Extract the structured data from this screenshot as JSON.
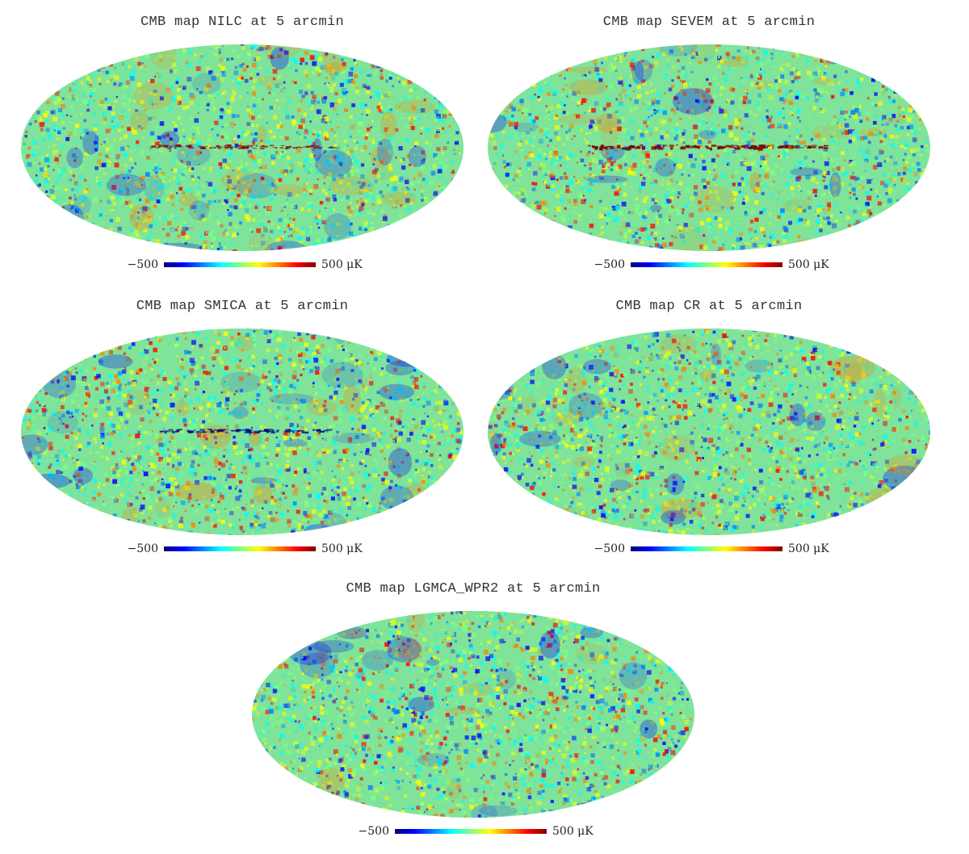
{
  "colors": {
    "cold": "#0000ff",
    "warm": "#ff0000",
    "background_green": "#7fe39a",
    "colorbar_scale": [
      "#00007f",
      "#0000ff",
      "#007fff",
      "#00ffff",
      "#7fff7f",
      "#ffff00",
      "#ff7f00",
      "#ff0000",
      "#7f0000"
    ]
  },
  "panels": [
    {
      "title": "CMB map NILC at 5 arcmin",
      "colorbar": {
        "min": "−500",
        "max": "500 μK"
      }
    },
    {
      "title": "CMB map SEVEM at 5 arcmin",
      "colorbar": {
        "min": "−500",
        "max": "500 μK"
      }
    },
    {
      "title": "CMB map SMICA at 5 arcmin",
      "colorbar": {
        "min": "−500",
        "max": "500 μK"
      }
    },
    {
      "title": "CMB map CR at 5 arcmin",
      "colorbar": {
        "min": "−500",
        "max": "500 μK"
      }
    },
    {
      "title": "CMB map LGMCA_WPR2 at 5 arcmin",
      "colorbar": {
        "min": "−500",
        "max": "500 μK"
      }
    }
  ]
}
